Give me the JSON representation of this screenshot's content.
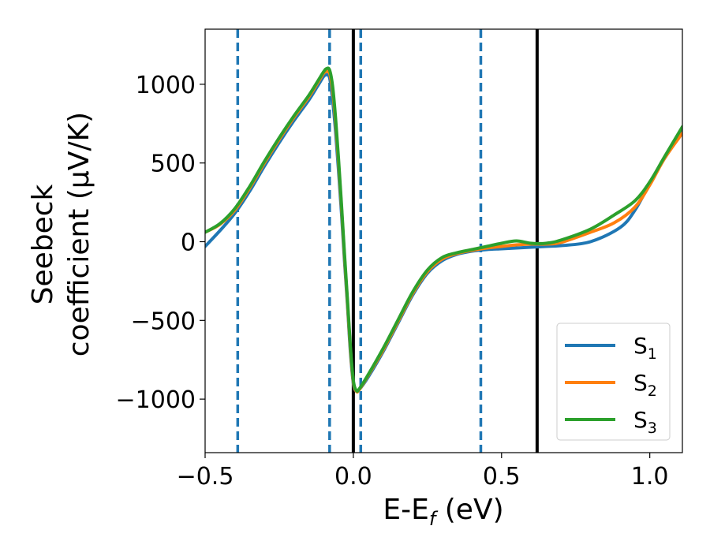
{
  "chart_data": {
    "type": "line",
    "xlabel": "E-E_f (eV)",
    "xlabel_parts": {
      "main": "E-E",
      "sub": "f",
      "rest": " (eV)"
    },
    "ylabel_lines": [
      "Seebeck",
      "coefficient  (μV/K)"
    ],
    "xlim": [
      -0.5,
      1.11
    ],
    "ylim": [
      -1340,
      1350
    ],
    "xticks": [
      -0.5,
      0.0,
      0.5,
      1.0
    ],
    "xtick_labels": [
      "−0.5",
      "0.0",
      "0.5",
      "1.0"
    ],
    "yticks": [
      -1000,
      -500,
      0,
      500,
      1000
    ],
    "ytick_labels": [
      "−1000",
      "−500",
      "0",
      "500",
      "1000"
    ],
    "grid": false,
    "legend_position": "bottom-right",
    "vertical_lines": [
      {
        "x": -0.39,
        "style": "dashed",
        "color": "#1f77b4"
      },
      {
        "x": -0.08,
        "style": "dashed",
        "color": "#1f77b4"
      },
      {
        "x": 0.0,
        "style": "solid",
        "color": "#000000"
      },
      {
        "x": 0.025,
        "style": "dashed",
        "color": "#1f77b4"
      },
      {
        "x": 0.43,
        "style": "dashed",
        "color": "#1f77b4"
      },
      {
        "x": 0.62,
        "style": "solid",
        "color": "#000000"
      }
    ],
    "series": [
      {
        "name": "S1",
        "label_main": "S",
        "label_sub": "1",
        "color": "#1f77b4",
        "points": [
          [
            -0.5,
            -30
          ],
          [
            -0.45,
            70
          ],
          [
            -0.4,
            180
          ],
          [
            -0.35,
            320
          ],
          [
            -0.3,
            480
          ],
          [
            -0.25,
            630
          ],
          [
            -0.2,
            770
          ],
          [
            -0.15,
            900
          ],
          [
            -0.12,
            990
          ],
          [
            -0.1,
            1050
          ],
          [
            -0.09,
            1060
          ],
          [
            -0.08,
            1040
          ],
          [
            -0.07,
            900
          ],
          [
            -0.06,
            700
          ],
          [
            -0.05,
            450
          ],
          [
            -0.04,
            180
          ],
          [
            -0.03,
            -120
          ],
          [
            -0.02,
            -400
          ],
          [
            -0.01,
            -700
          ],
          [
            0.0,
            -900
          ],
          [
            0.01,
            -950
          ],
          [
            0.02,
            -940
          ],
          [
            0.05,
            -860
          ],
          [
            0.1,
            -700
          ],
          [
            0.15,
            -520
          ],
          [
            0.2,
            -340
          ],
          [
            0.25,
            -200
          ],
          [
            0.3,
            -120
          ],
          [
            0.35,
            -80
          ],
          [
            0.4,
            -60
          ],
          [
            0.45,
            -50
          ],
          [
            0.5,
            -45
          ],
          [
            0.55,
            -40
          ],
          [
            0.6,
            -35
          ],
          [
            0.65,
            -30
          ],
          [
            0.7,
            -25
          ],
          [
            0.8,
            0
          ],
          [
            0.9,
            90
          ],
          [
            0.95,
            200
          ],
          [
            1.0,
            370
          ],
          [
            1.05,
            530
          ],
          [
            1.11,
            700
          ]
        ]
      },
      {
        "name": "S2",
        "label_main": "S",
        "label_sub": "2",
        "color": "#ff7f0e",
        "points": [
          [
            -0.5,
            60
          ],
          [
            -0.45,
            110
          ],
          [
            -0.4,
            200
          ],
          [
            -0.35,
            340
          ],
          [
            -0.3,
            500
          ],
          [
            -0.25,
            650
          ],
          [
            -0.2,
            790
          ],
          [
            -0.15,
            920
          ],
          [
            -0.12,
            1010
          ],
          [
            -0.1,
            1070
          ],
          [
            -0.09,
            1080
          ],
          [
            -0.08,
            1070
          ],
          [
            -0.07,
            960
          ],
          [
            -0.06,
            760
          ],
          [
            -0.05,
            500
          ],
          [
            -0.04,
            220
          ],
          [
            -0.03,
            -90
          ],
          [
            -0.02,
            -380
          ],
          [
            -0.01,
            -680
          ],
          [
            0.0,
            -890
          ],
          [
            0.01,
            -950
          ],
          [
            0.02,
            -940
          ],
          [
            0.05,
            -850
          ],
          [
            0.1,
            -690
          ],
          [
            0.15,
            -510
          ],
          [
            0.2,
            -330
          ],
          [
            0.25,
            -190
          ],
          [
            0.3,
            -110
          ],
          [
            0.35,
            -75
          ],
          [
            0.4,
            -55
          ],
          [
            0.45,
            -40
          ],
          [
            0.5,
            -30
          ],
          [
            0.55,
            -20
          ],
          [
            0.6,
            -15
          ],
          [
            0.65,
            -15
          ],
          [
            0.7,
            -5
          ],
          [
            0.8,
            60
          ],
          [
            0.88,
            120
          ],
          [
            0.95,
            220
          ],
          [
            1.0,
            360
          ],
          [
            1.05,
            530
          ],
          [
            1.11,
            690
          ]
        ]
      },
      {
        "name": "S3",
        "label_main": "S",
        "label_sub": "3",
        "color": "#2ca02c",
        "points": [
          [
            -0.5,
            60
          ],
          [
            -0.45,
            115
          ],
          [
            -0.4,
            210
          ],
          [
            -0.35,
            350
          ],
          [
            -0.3,
            510
          ],
          [
            -0.25,
            660
          ],
          [
            -0.2,
            800
          ],
          [
            -0.15,
            930
          ],
          [
            -0.12,
            1020
          ],
          [
            -0.1,
            1080
          ],
          [
            -0.09,
            1100
          ],
          [
            -0.08,
            1090
          ],
          [
            -0.07,
            990
          ],
          [
            -0.06,
            790
          ],
          [
            -0.05,
            530
          ],
          [
            -0.04,
            240
          ],
          [
            -0.03,
            -70
          ],
          [
            -0.02,
            -360
          ],
          [
            -0.01,
            -660
          ],
          [
            0.0,
            -880
          ],
          [
            0.01,
            -945
          ],
          [
            0.02,
            -935
          ],
          [
            0.05,
            -845
          ],
          [
            0.1,
            -680
          ],
          [
            0.15,
            -500
          ],
          [
            0.2,
            -320
          ],
          [
            0.25,
            -180
          ],
          [
            0.3,
            -100
          ],
          [
            0.35,
            -70
          ],
          [
            0.4,
            -50
          ],
          [
            0.45,
            -30
          ],
          [
            0.5,
            -10
          ],
          [
            0.55,
            5
          ],
          [
            0.6,
            -10
          ],
          [
            0.65,
            -10
          ],
          [
            0.7,
            10
          ],
          [
            0.8,
            80
          ],
          [
            0.88,
            170
          ],
          [
            0.95,
            260
          ],
          [
            1.0,
            380
          ],
          [
            1.05,
            540
          ],
          [
            1.11,
            730
          ]
        ]
      }
    ]
  }
}
